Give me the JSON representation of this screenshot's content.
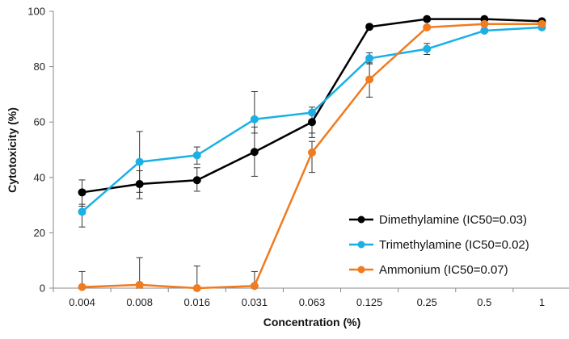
{
  "chart_data": {
    "type": "line",
    "xlabel": "Concentration (%)",
    "ylabel": "Cytotoxicity (%)",
    "categories": [
      "0.004",
      "0.008",
      "0.016",
      "0.031",
      "0.063",
      "0.125",
      "0.25",
      "0.5",
      "1"
    ],
    "ylim": [
      0,
      100
    ],
    "yticks": [
      "0",
      "20",
      "40",
      "60",
      "80",
      "100"
    ],
    "grid": false,
    "legend_position": "bottom-right",
    "series": [
      {
        "name": "Dimethylamine (IC50=0.03)",
        "color": "#000000",
        "values": [
          34.6,
          37.6,
          39.0,
          49.2,
          60.0,
          94.4,
          97.2,
          97.2,
          96.4
        ],
        "err_up": [
          4.5,
          4.8,
          4.5,
          9.0,
          3.5,
          0.8,
          0.4,
          0.4,
          0.5
        ],
        "err_down": [
          5.0,
          5.3,
          4.0,
          8.8,
          4.0,
          0.8,
          0.4,
          0.4,
          0.5
        ]
      },
      {
        "name": "Trimethylamine (IC50=0.02)",
        "color": "#1ab0e6",
        "values": [
          27.6,
          45.6,
          48.0,
          61.0,
          63.4,
          83.0,
          86.4,
          93.0,
          94.2
        ],
        "err_up": [
          2.7,
          11.0,
          3.0,
          10.0,
          2.0,
          2.0,
          2.0,
          0.6,
          0.6
        ],
        "err_down": [
          5.5,
          11.0,
          3.2,
          5.0,
          9.0,
          2.0,
          2.0,
          0.6,
          0.6
        ]
      },
      {
        "name": "Ammonium (IC50=0.07)",
        "color": "#f07b20",
        "values": [
          0.4,
          1.2,
          0.0,
          0.8,
          49.0,
          75.4,
          94.2,
          95.4,
          95.4
        ],
        "err_up": [
          5.6,
          9.8,
          8.0,
          5.2,
          4.0,
          6.0,
          0.6,
          0.5,
          0.5
        ],
        "err_down": [
          0.4,
          1.2,
          0.0,
          0.8,
          7.2,
          6.4,
          0.6,
          0.5,
          0.5
        ]
      }
    ]
  }
}
